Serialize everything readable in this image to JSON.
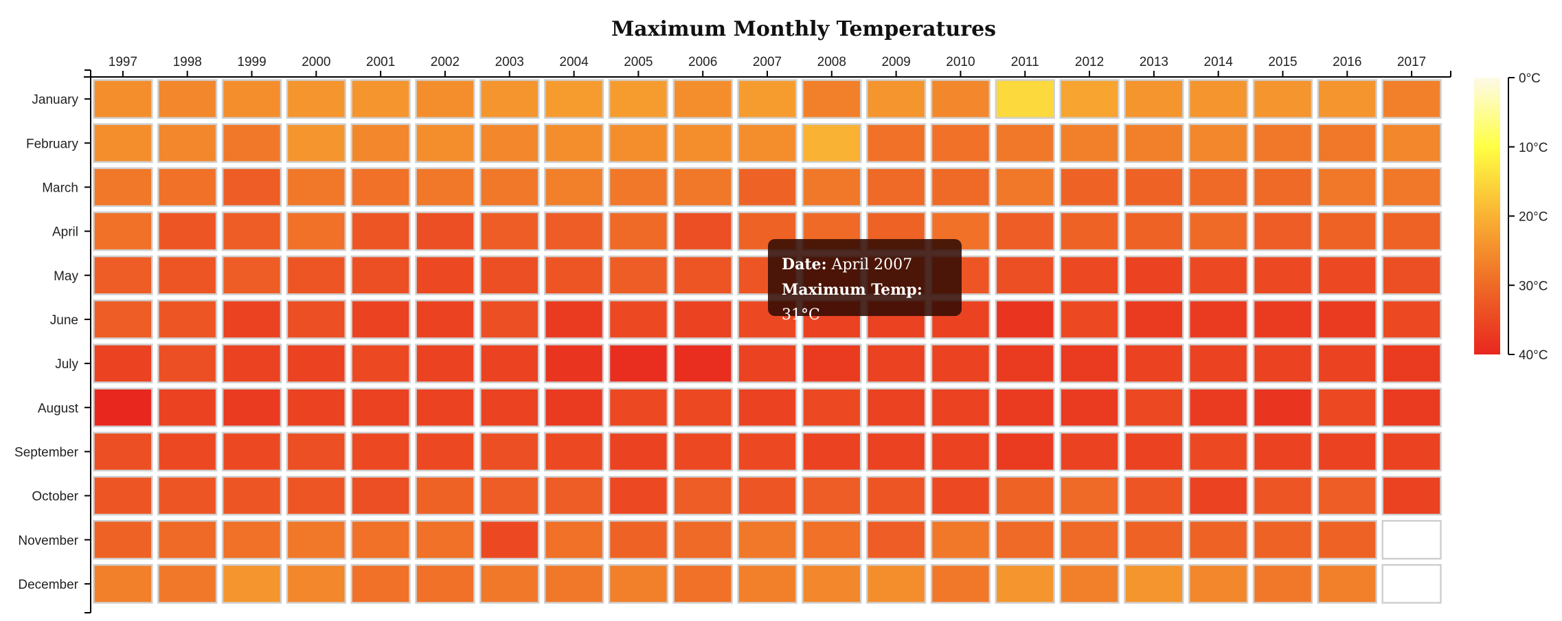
{
  "chart_data": {
    "type": "heatmap",
    "title": "Maximum Monthly Temperatures",
    "x": [
      "1997",
      "1998",
      "1999",
      "2000",
      "2001",
      "2002",
      "2003",
      "2004",
      "2005",
      "2006",
      "2007",
      "2008",
      "2009",
      "2010",
      "2011",
      "2012",
      "2013",
      "2014",
      "2015",
      "2016",
      "2017"
    ],
    "y": [
      "January",
      "February",
      "March",
      "April",
      "May",
      "June",
      "July",
      "August",
      "September",
      "October",
      "November",
      "December"
    ],
    "values": [
      [
        25,
        26,
        25,
        24,
        24,
        25,
        24,
        23,
        23,
        25,
        23,
        27,
        24,
        26,
        15,
        22,
        24,
        24,
        24,
        24,
        27
      ],
      [
        25,
        26,
        28,
        24,
        26,
        25,
        26,
        25,
        25,
        25,
        25,
        20,
        29,
        29,
        28,
        27,
        27,
        26,
        28,
        28,
        26
      ],
      [
        28,
        29,
        32,
        28,
        29,
        28,
        28,
        27,
        28,
        28,
        31,
        28,
        30,
        30,
        28,
        31,
        31,
        30,
        30,
        28,
        28
      ],
      [
        29,
        33,
        32,
        29,
        33,
        34,
        32,
        32,
        30,
        34,
        31,
        30,
        31,
        29,
        32,
        31,
        31,
        30,
        32,
        31,
        31
      ],
      [
        32,
        33,
        32,
        33,
        34,
        35,
        34,
        33,
        32,
        33,
        33,
        34,
        33,
        33,
        34,
        35,
        36,
        35,
        35,
        35,
        34
      ],
      [
        32,
        33,
        36,
        34,
        36,
        36,
        34,
        37,
        35,
        36,
        35,
        36,
        36,
        36,
        38,
        35,
        37,
        37,
        37,
        37,
        35
      ],
      [
        36,
        34,
        36,
        36,
        35,
        36,
        36,
        38,
        39,
        39,
        36,
        37,
        36,
        36,
        37,
        37,
        36,
        36,
        36,
        36,
        37
      ],
      [
        40,
        36,
        37,
        36,
        36,
        36,
        36,
        37,
        35,
        35,
        36,
        35,
        36,
        36,
        37,
        37,
        35,
        37,
        38,
        35,
        37
      ],
      [
        34,
        35,
        35,
        34,
        35,
        35,
        34,
        35,
        36,
        35,
        35,
        36,
        36,
        36,
        37,
        36,
        36,
        35,
        36,
        36,
        36
      ],
      [
        33,
        33,
        33,
        33,
        34,
        31,
        32,
        32,
        35,
        32,
        33,
        32,
        33,
        35,
        31,
        30,
        33,
        36,
        33,
        32,
        36
      ],
      [
        31,
        30,
        29,
        28,
        29,
        29,
        35,
        29,
        31,
        30,
        28,
        29,
        32,
        28,
        30,
        30,
        31,
        31,
        31,
        31,
        null
      ],
      [
        27,
        28,
        24,
        26,
        29,
        29,
        28,
        28,
        27,
        29,
        27,
        26,
        25,
        28,
        24,
        27,
        24,
        26,
        28,
        27,
        null
      ]
    ],
    "colorbar": {
      "min": 0,
      "max": 40,
      "ticks": [
        "0°C",
        "10°C",
        "20°C",
        "30°C",
        "40°C"
      ]
    }
  },
  "tooltip": {
    "date_label": "Date:",
    "date_value": "April 2007",
    "temp_label": "Maximum Temp:",
    "temp_value": "31°C"
  }
}
